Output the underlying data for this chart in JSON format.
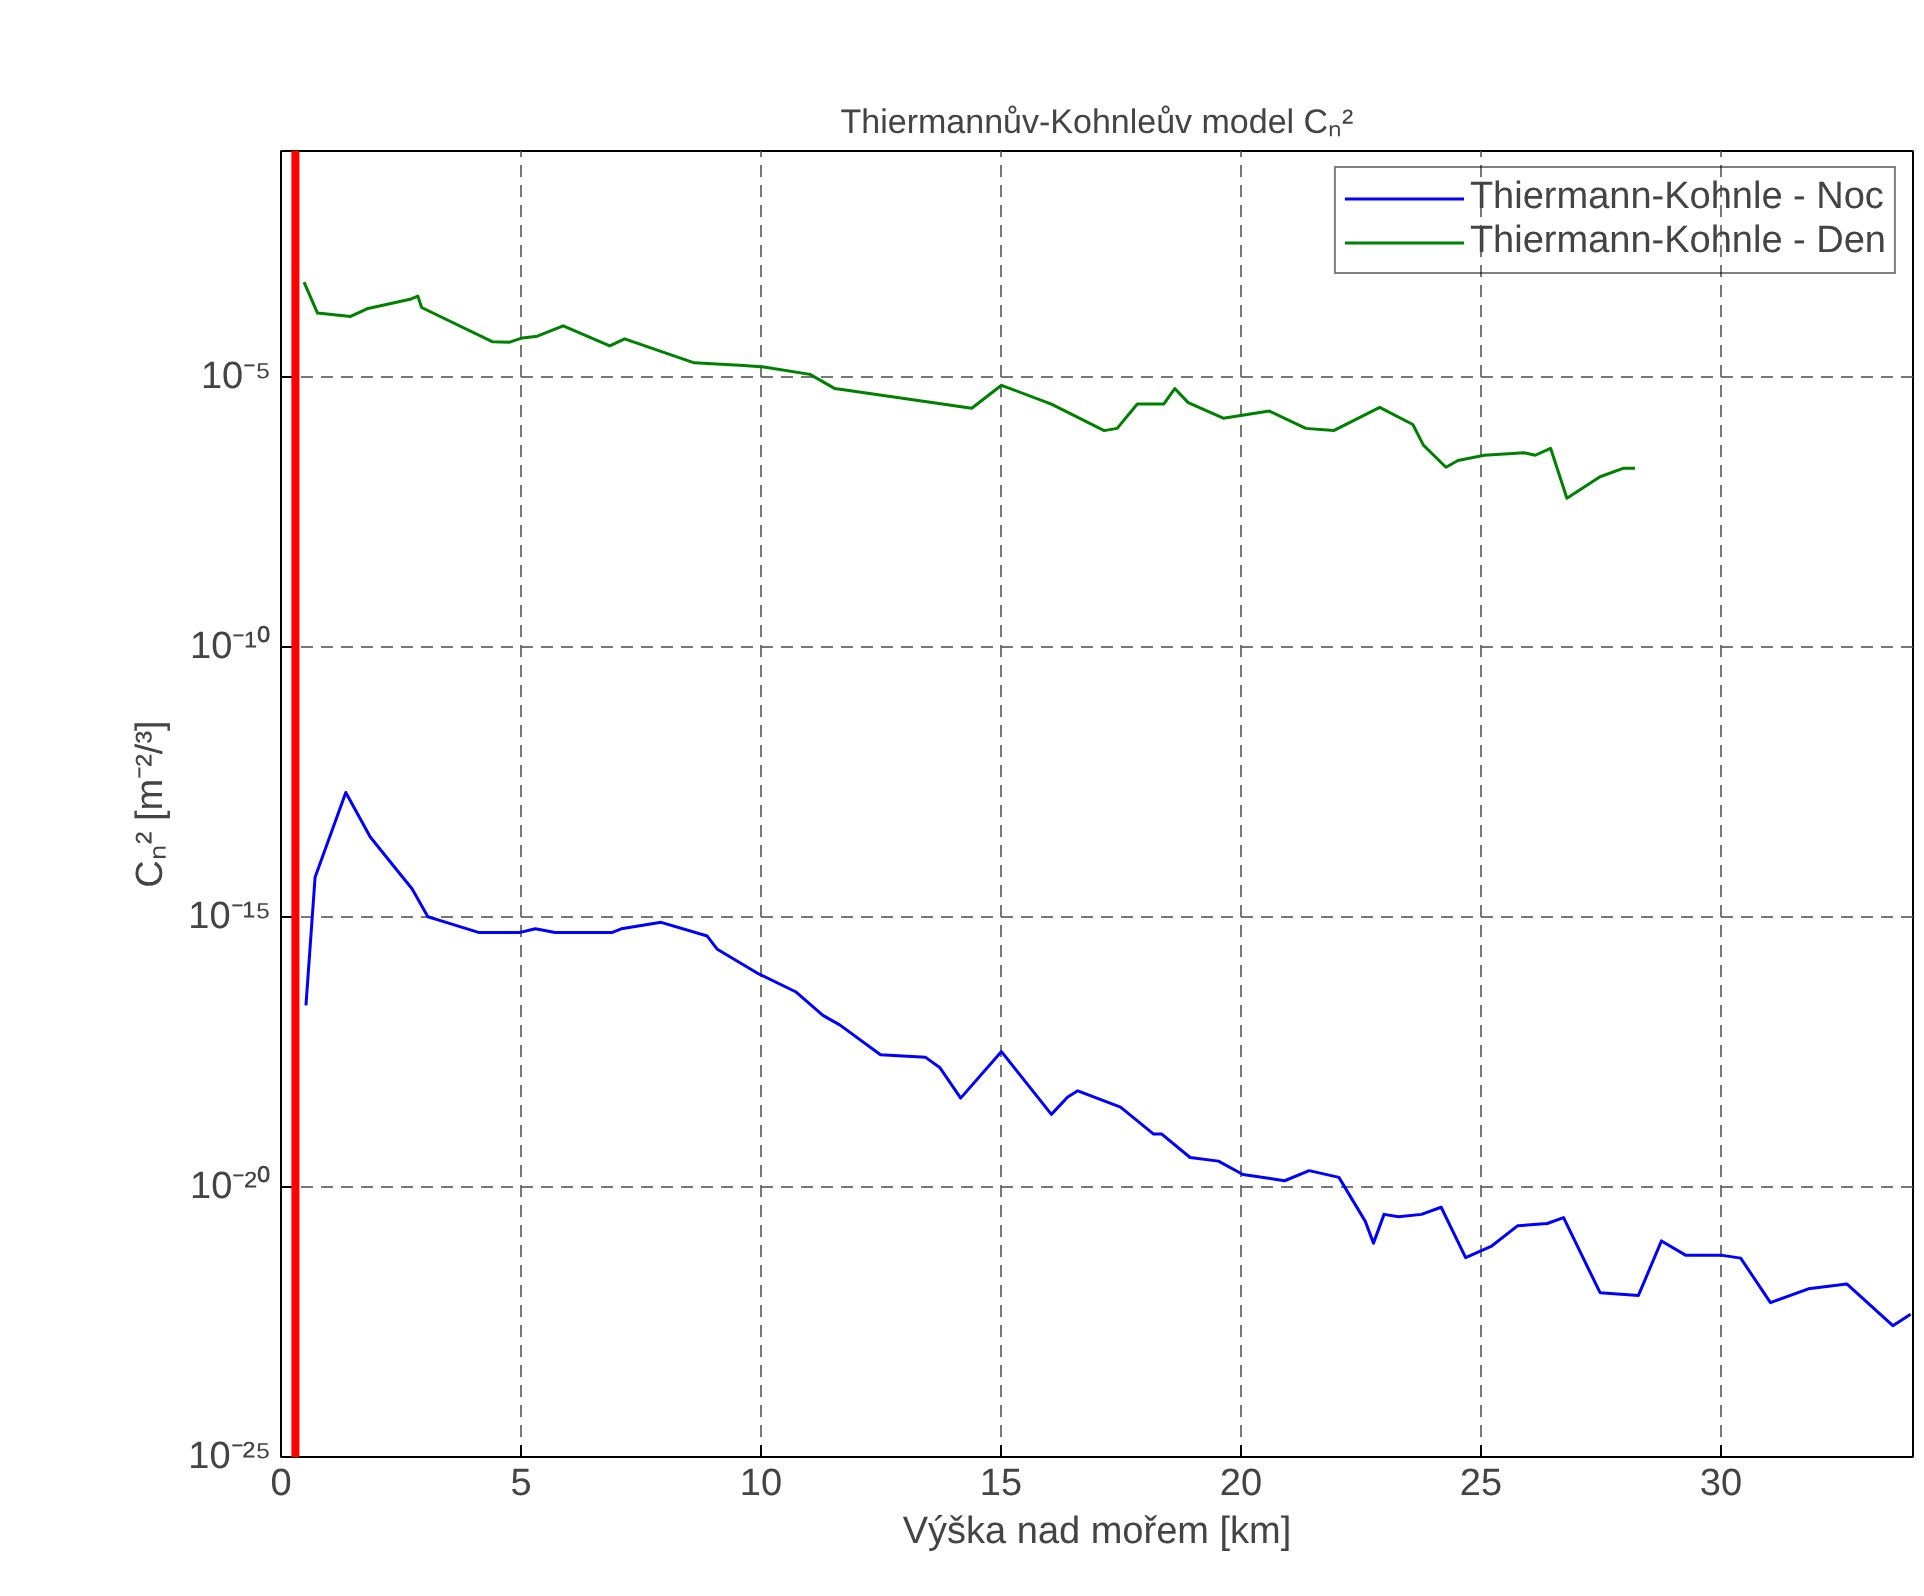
{
  "chart_data": {
    "type": "line",
    "title": "Thiermannův-Kohnleův model Cₙ²",
    "xlabel": "Výška nad mořem [km]",
    "ylabel": "Cₙ² [m⁻²/³]",
    "log": "y",
    "grid": true,
    "legend": "top right",
    "line_style": "solid",
    "marker": "none",
    "xlim": [
      0,
      34
    ],
    "xticks": [
      0,
      5,
      10,
      15,
      20,
      25,
      30
    ],
    "ylim": [
      1e-25,
      0.15
    ],
    "yticks": [
      {
        "value": 1e-25,
        "label": "10⁻²⁵"
      },
      {
        "value": 1e-20,
        "label": "10⁻²⁰"
      },
      {
        "value": 1e-15,
        "label": "10⁻¹⁵"
      },
      {
        "value": 1e-10,
        "label": "10⁻¹⁰"
      },
      {
        "value": 1e-05,
        "label": "10⁻⁵"
      }
    ],
    "ref_lines": [
      {
        "axis": "x",
        "value": 0.3,
        "color": "#ff0000"
      }
    ],
    "series": [
      {
        "name": "Thiermann-Kohnle - Noc",
        "color": "#0000ff",
        "x": [
          0.52,
          0.71,
          1.35,
          1.86,
          2.48,
          2.73,
          3.06,
          3.44,
          4.13,
          4.96,
          5.3,
          5.71,
          6.89,
          7.09,
          7.92,
          8.88,
          9.09,
          9.92,
          10.72,
          11.29,
          11.64,
          12.49,
          13.43,
          13.73,
          14.16,
          15.01,
          16.05,
          16.39,
          16.6,
          17.49,
          18.18,
          18.35,
          18.94,
          19.53,
          20.04,
          20.91,
          21.42,
          22.04,
          22.59,
          22.76,
          22.98,
          23.28,
          23.76,
          24.17,
          24.68,
          25.21,
          25.76,
          26.38,
          26.72,
          27.48,
          28.28,
          28.76,
          29.27,
          30.03,
          30.41,
          31.03,
          31.82,
          32.62,
          33.58,
          33.95
        ],
        "values": [
          2.3e-17,
          5.4e-15,
          2e-13,
          3e-14,
          6.2e-15,
          3.3e-15,
          1e-15,
          7.9e-16,
          5.1e-16,
          5.1e-16,
          6e-16,
          5.1e-16,
          5.1e-16,
          6e-16,
          7.9e-16,
          4.4e-16,
          2.5e-16,
          9.1e-17,
          4.1e-17,
          1.5e-17,
          1e-17,
          2.8e-18,
          2.5e-18,
          1.6e-18,
          4.4e-19,
          3.2e-18,
          2.2e-19,
          4.6e-19,
          6e-19,
          3e-19,
          9.5e-20,
          9.5e-20,
          3.5e-20,
          3e-20,
          1.7e-20,
          1.3e-20,
          2e-20,
          1.5e-20,
          2.3e-21,
          9.1e-22,
          3.1e-21,
          2.8e-21,
          3.1e-21,
          4.2e-21,
          4.9e-22,
          7.9e-22,
          1.9e-21,
          2.1e-21,
          2.7e-21,
          1.1e-22,
          9.8e-23,
          1e-21,
          5.4e-22,
          5.4e-22,
          4.8e-22,
          7.2e-23,
          1.3e-22,
          1.6e-22,
          2.7e-23,
          4.4e-23
        ]
      },
      {
        "name": "Thiermann-Kohnle - Den",
        "color": "#008000",
        "x": [
          0.48,
          0.76,
          1.45,
          1.79,
          2.69,
          2.85,
          2.93,
          4.41,
          4.75,
          5.03,
          5.34,
          5.88,
          6.85,
          7.16,
          8.61,
          9.64,
          10.06,
          11.02,
          11.54,
          14.39,
          15.01,
          16.05,
          17.15,
          17.42,
          17.84,
          18.39,
          18.62,
          18.9,
          19.63,
          20.59,
          21.35,
          21.93,
          22.89,
          23.58,
          23.8,
          24.27,
          24.52,
          25.07,
          25.9,
          26.13,
          26.45,
          26.79,
          27.48,
          27.96,
          28.21
        ],
        "values": [
          0.00056,
          0.00015,
          0.00013,
          0.00018,
          0.00027,
          0.00031,
          0.00019,
          4.4e-05,
          4.3e-05,
          5.2e-05,
          5.6e-05,
          8.7e-05,
          3.7e-05,
          5e-05,
          1.8e-05,
          1.6e-05,
          1.5e-05,
          1.1e-05,
          6e-06,
          2.6e-06,
          6.9e-06,
          3.1e-06,
          1e-06,
          1.1e-06,
          3.1e-06,
          3.1e-06,
          6e-06,
          3.3e-06,
          1.7e-06,
          2.3e-06,
          1.1e-06,
          1e-06,
          2.7e-06,
          1.3e-06,
          5.4e-07,
          2.1e-07,
          2.8e-07,
          3.5e-07,
          3.9e-07,
          3.5e-07,
          4.7e-07,
          5.6e-08,
          1.4e-07,
          2e-07,
          2e-07
        ]
      }
    ]
  }
}
